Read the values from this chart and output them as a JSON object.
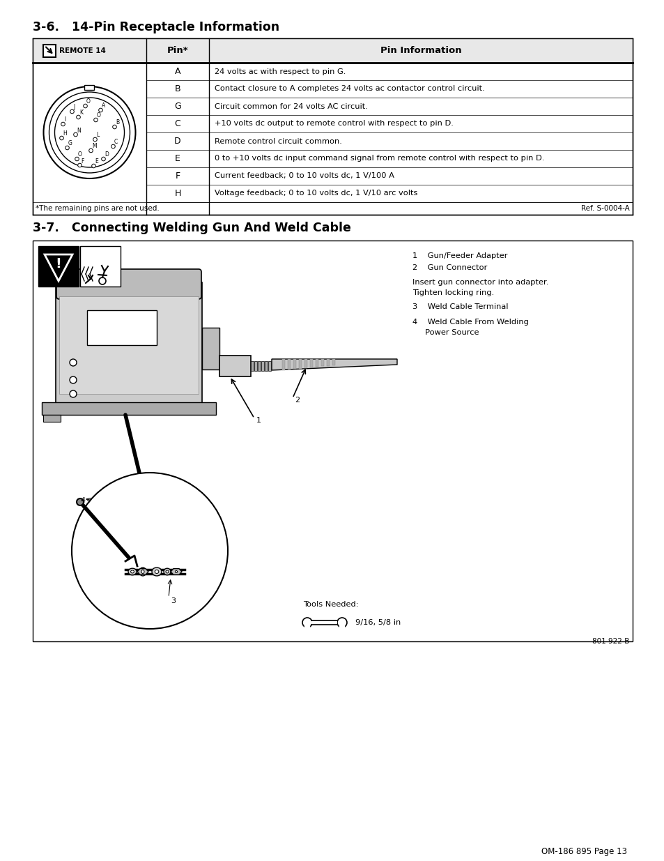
{
  "title1": "3-6.   14-Pin Receptacle Information",
  "title2": "3-7.   Connecting Welding Gun And Weld Cable",
  "table_header_col2": "Pin*",
  "table_header_col3": "Pin Information",
  "table_rows": [
    [
      "A",
      "24 volts ac with respect to pin G."
    ],
    [
      "B",
      "Contact closure to A completes 24 volts ac contactor control circuit."
    ],
    [
      "G",
      "Circuit common for 24 volts AC circuit."
    ],
    [
      "C",
      "+10 volts dc output to remote control with respect to pin D."
    ],
    [
      "D",
      "Remote control circuit common."
    ],
    [
      "E",
      "0 to +10 volts dc input command signal from remote control with respect to pin D."
    ],
    [
      "F",
      "Current feedback; 0 to 10 volts dc, 1 V/100 A"
    ],
    [
      "H",
      "Voltage feedback; 0 to 10 volts dc, 1 V/10 arc volts"
    ]
  ],
  "table_footnote": "*The remaining pins are not used.",
  "table_ref": "Ref. S-0004-A",
  "item1": "1    Gun/Feeder Adapter",
  "item2": "2    Gun Connector",
  "note": "Insert gun connector into adapter.\nTighten locking ring.",
  "item3": "3    Weld Cable Terminal",
  "item4a": "4    Weld Cable From Welding",
  "item4b": "     Power Source",
  "tools_label": "Tools Needed:",
  "tools_value": "9/16, 5/8 in",
  "figure_ref": "801 922-B",
  "page_ref": "OM-186 895 Page 13",
  "bg_color": "#ffffff"
}
